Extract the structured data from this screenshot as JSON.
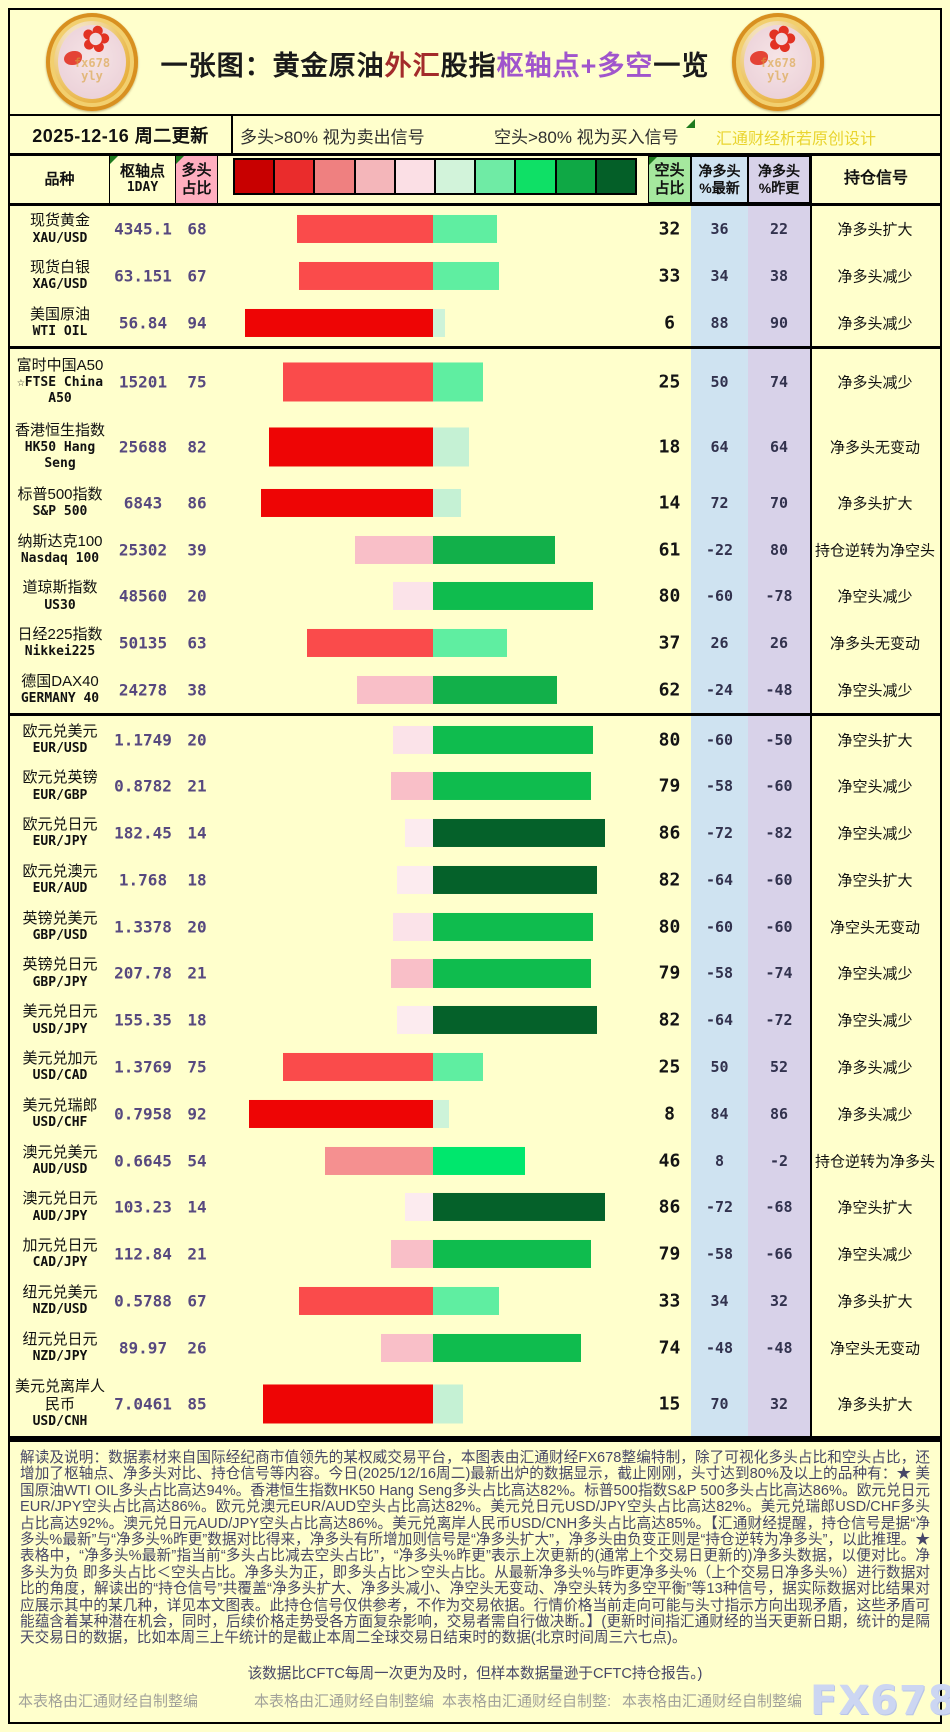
{
  "page": {
    "background": "#ffffcc"
  },
  "logo": {
    "flower_color": "#e23223",
    "watermark_lines": [
      "fx678",
      "yly"
    ]
  },
  "title": {
    "segments": [
      {
        "text": "一张图：黄金原油",
        "color": "#1a1a1a"
      },
      {
        "text": "外汇",
        "color": "#a32b2b"
      },
      {
        "text": "股指",
        "color": "#1a1a1a"
      },
      {
        "text": "枢轴点+多空",
        "color": "#a055cc"
      },
      {
        "text": "一览",
        "color": "#1a1a1a"
      }
    ]
  },
  "legend": {
    "date": "2025-12-16 周二更新",
    "long_rule": "多头>80% 视为卖出信号",
    "short_rule": "空头>80% 视为买入信号",
    "credit": "汇通财经析若原创设计",
    "credit_color": "#e9d42f"
  },
  "header": {
    "product": "品种",
    "pivot": "枢轴点",
    "pivot_sub": "1DAY",
    "long_l1": "多头",
    "long_l2": "占比",
    "short_l1": "空头",
    "short_l2": "占比",
    "net_new_l1": "净多头",
    "net_new_l2": "%最新",
    "net_prev_l1": "净多头",
    "net_prev_l2": "%昨更",
    "signal": "持仓信号",
    "scale_colors": [
      "#c80000",
      "#ea2c2c",
      "#ef8080",
      "#f4b6ba",
      "#fbdfe5",
      "#d2f3da",
      "#6feba5",
      "#0fe066",
      "#0fa845",
      "#045f28"
    ],
    "colors": {
      "long_header_bg": "#ffaebf",
      "short_header_bg": "#a5e89e",
      "net_new_bg": "#cfe3f1",
      "net_prev_bg": "#d8d2e9"
    }
  },
  "table": {
    "rows": [
      {
        "cn": [
          "现货黄金"
        ],
        "en": [
          "XAU/USD"
        ],
        "pivot": "4345.1",
        "long": 68,
        "short": 32,
        "net_new": "36",
        "net_prev": "22",
        "signal": "净多头扩大",
        "long_color": "#fa4b4b",
        "short_color": "#5feea1",
        "lines": 2,
        "group_end": false
      },
      {
        "cn": [
          "现货白银"
        ],
        "en": [
          "XAG/USD"
        ],
        "pivot": "63.151",
        "long": 67,
        "short": 33,
        "net_new": "34",
        "net_prev": "38",
        "signal": "净多头减少",
        "long_color": "#fa4b4b",
        "short_color": "#5feea1",
        "lines": 2,
        "group_end": false
      },
      {
        "cn": [
          "美国原油"
        ],
        "en": [
          "WTI OIL"
        ],
        "pivot": "56.84",
        "long": 94,
        "short": 6,
        "net_new": "88",
        "net_prev": "90",
        "signal": "净多头减少",
        "long_color": "#ee0505",
        "short_color": "#cdf3d9",
        "lines": 2,
        "group_end": true
      },
      {
        "cn": [
          "富时中国A50"
        ],
        "en": [
          "☆FTSE China",
          "A50"
        ],
        "pivot": "15201",
        "long": 75,
        "short": 25,
        "net_new": "50",
        "net_prev": "74",
        "signal": "净多头减少",
        "long_color": "#fa4b4b",
        "short_color": "#5feea1",
        "lines": 3,
        "group_end": false
      },
      {
        "cn": [
          "香港恒生指数"
        ],
        "en": [
          "HK50 Hang",
          "Seng"
        ],
        "pivot": "25688",
        "long": 82,
        "short": 18,
        "net_new": "64",
        "net_prev": "64",
        "signal": "净多头无变动",
        "long_color": "#ee0505",
        "short_color": "#c5f1d4",
        "lines": 3,
        "group_end": false
      },
      {
        "cn": [
          "标普500指数"
        ],
        "en": [
          "S&P 500"
        ],
        "pivot": "6843",
        "long": 86,
        "short": 14,
        "net_new": "72",
        "net_prev": "70",
        "signal": "净多头扩大",
        "long_color": "#ee0505",
        "short_color": "#c5f1d4",
        "lines": 2,
        "group_end": false
      },
      {
        "cn": [
          "纳斯达克100"
        ],
        "en": [
          "Nasdaq 100"
        ],
        "pivot": "25302",
        "long": 39,
        "short": 61,
        "net_new": "-22",
        "net_prev": "80",
        "signal": "持仓逆转为净空头",
        "long_color": "#f9bfc8",
        "short_color": "#12b04a",
        "lines": 2,
        "group_end": false
      },
      {
        "cn": [
          "道琼斯指数"
        ],
        "en": [
          "US30"
        ],
        "pivot": "48560",
        "long": 20,
        "short": 80,
        "net_new": "-60",
        "net_prev": "-78",
        "signal": "净空头减少",
        "long_color": "#fbe3e9",
        "short_color": "#0fbc4e",
        "lines": 2,
        "group_end": false
      },
      {
        "cn": [
          "日经225指数"
        ],
        "en": [
          "Nikkei225"
        ],
        "pivot": "50135",
        "long": 63,
        "short": 37,
        "net_new": "26",
        "net_prev": "26",
        "signal": "净多头无变动",
        "long_color": "#fa4b4b",
        "short_color": "#5feea1",
        "lines": 2,
        "group_end": false
      },
      {
        "cn": [
          "德国DAX40"
        ],
        "en": [
          "GERMANY 40"
        ],
        "pivot": "24278",
        "long": 38,
        "short": 62,
        "net_new": "-24",
        "net_prev": "-48",
        "signal": "净空头减少",
        "long_color": "#f9bfc8",
        "short_color": "#12b04a",
        "lines": 2,
        "group_end": true
      },
      {
        "cn": [
          "欧元兑美元"
        ],
        "en": [
          "EUR/USD"
        ],
        "pivot": "1.1749",
        "long": 20,
        "short": 80,
        "net_new": "-60",
        "net_prev": "-50",
        "signal": "净空头扩大",
        "long_color": "#fbe3e9",
        "short_color": "#0fbc4e",
        "lines": 2,
        "group_end": false
      },
      {
        "cn": [
          "欧元兑英镑"
        ],
        "en": [
          "EUR/GBP"
        ],
        "pivot": "0.8782",
        "long": 21,
        "short": 79,
        "net_new": "-58",
        "net_prev": "-60",
        "signal": "净空头减少",
        "long_color": "#f9bfc8",
        "short_color": "#0fbc4e",
        "lines": 2,
        "group_end": false
      },
      {
        "cn": [
          "欧元兑日元"
        ],
        "en": [
          "EUR/JPY"
        ],
        "pivot": "182.45",
        "long": 14,
        "short": 86,
        "net_new": "-72",
        "net_prev": "-82",
        "signal": "净空头减少",
        "long_color": "#fcebef",
        "short_color": "#05612a",
        "lines": 2,
        "group_end": false
      },
      {
        "cn": [
          "欧元兑澳元"
        ],
        "en": [
          "EUR/AUD"
        ],
        "pivot": "1.768",
        "long": 18,
        "short": 82,
        "net_new": "-64",
        "net_prev": "-60",
        "signal": "净空头扩大",
        "long_color": "#fcebef",
        "short_color": "#05612a",
        "lines": 2,
        "group_end": false
      },
      {
        "cn": [
          "英镑兑美元"
        ],
        "en": [
          "GBP/USD"
        ],
        "pivot": "1.3378",
        "long": 20,
        "short": 80,
        "net_new": "-60",
        "net_prev": "-60",
        "signal": "净空头无变动",
        "long_color": "#fbe3e9",
        "short_color": "#0fbc4e",
        "lines": 2,
        "group_end": false
      },
      {
        "cn": [
          "英镑兑日元"
        ],
        "en": [
          "GBP/JPY"
        ],
        "pivot": "207.78",
        "long": 21,
        "short": 79,
        "net_new": "-58",
        "net_prev": "-74",
        "signal": "净空头减少",
        "long_color": "#f9bfc8",
        "short_color": "#0fbc4e",
        "lines": 2,
        "group_end": false
      },
      {
        "cn": [
          "美元兑日元"
        ],
        "en": [
          "USD/JPY"
        ],
        "pivot": "155.35",
        "long": 18,
        "short": 82,
        "net_new": "-64",
        "net_prev": "-72",
        "signal": "净空头减少",
        "long_color": "#fcebef",
        "short_color": "#05612a",
        "lines": 2,
        "group_end": false
      },
      {
        "cn": [
          "美元兑加元"
        ],
        "en": [
          "USD/CAD"
        ],
        "pivot": "1.3769",
        "long": 75,
        "short": 25,
        "net_new": "50",
        "net_prev": "52",
        "signal": "净多头减少",
        "long_color": "#fa4b4b",
        "short_color": "#5feea1",
        "lines": 2,
        "group_end": false
      },
      {
        "cn": [
          "美元兑瑞郎"
        ],
        "en": [
          "USD/CHF"
        ],
        "pivot": "0.7958",
        "long": 92,
        "short": 8,
        "net_new": "84",
        "net_prev": "86",
        "signal": "净多头减少",
        "long_color": "#ee0505",
        "short_color": "#cdf3d9",
        "lines": 2,
        "group_end": false
      },
      {
        "cn": [
          "澳元兑美元"
        ],
        "en": [
          "AUD/USD"
        ],
        "pivot": "0.6645",
        "long": 54,
        "short": 46,
        "net_new": "8",
        "net_prev": "-2",
        "signal": "持仓逆转为净多头",
        "long_color": "#f59090",
        "short_color": "#00e76d",
        "lines": 2,
        "group_end": false
      },
      {
        "cn": [
          "澳元兑日元"
        ],
        "en": [
          "AUD/JPY"
        ],
        "pivot": "103.23",
        "long": 14,
        "short": 86,
        "net_new": "-72",
        "net_prev": "-68",
        "signal": "净空头扩大",
        "long_color": "#fcebef",
        "short_color": "#05612a",
        "lines": 2,
        "group_end": false
      },
      {
        "cn": [
          "加元兑日元"
        ],
        "en": [
          "CAD/JPY"
        ],
        "pivot": "112.84",
        "long": 21,
        "short": 79,
        "net_new": "-58",
        "net_prev": "-66",
        "signal": "净空头减少",
        "long_color": "#f9bfc8",
        "short_color": "#0fbc4e",
        "lines": 2,
        "group_end": false
      },
      {
        "cn": [
          "纽元兑美元"
        ],
        "en": [
          "NZD/USD"
        ],
        "pivot": "0.5788",
        "long": 67,
        "short": 33,
        "net_new": "34",
        "net_prev": "32",
        "signal": "净多头扩大",
        "long_color": "#fa4b4b",
        "short_color": "#5feea1",
        "lines": 2,
        "group_end": false
      },
      {
        "cn": [
          "纽元兑日元"
        ],
        "en": [
          "NZD/JPY"
        ],
        "pivot": "89.97",
        "long": 26,
        "short": 74,
        "net_new": "-48",
        "net_prev": "-48",
        "signal": "净空头无变动",
        "long_color": "#f9bfc8",
        "short_color": "#0fbc4e",
        "lines": 2,
        "group_end": false
      },
      {
        "cn": [
          "美元兑离岸人",
          "民币"
        ],
        "en": [
          "USD/CNH"
        ],
        "pivot": "7.0461",
        "long": 85,
        "short": 15,
        "net_new": "70",
        "net_prev": "32",
        "signal": "净多头扩大",
        "long_color": "#ee0505",
        "short_color": "#c5f1d4",
        "lines": 3,
        "group_end": true
      }
    ]
  },
  "chart_data": {
    "type": "bar",
    "subtype": "diverging-stacked-horizontal",
    "title": "一张图：黄金原油外汇股指枢轴点+多空一览",
    "legend_position": "top",
    "axis_note": "中轴为多空分界，左红=多头占比，右绿=空头占比，每侧0-100%",
    "categories": [
      "XAU/USD",
      "XAG/USD",
      "WTI OIL",
      "FTSE China A50",
      "HK50 Hang Seng",
      "S&P 500",
      "Nasdaq 100",
      "US30",
      "Nikkei225",
      "GERMANY 40",
      "EUR/USD",
      "EUR/GBP",
      "EUR/JPY",
      "EUR/AUD",
      "GBP/USD",
      "GBP/JPY",
      "USD/JPY",
      "USD/CAD",
      "USD/CHF",
      "AUD/USD",
      "AUD/JPY",
      "CAD/JPY",
      "NZD/USD",
      "NZD/JPY",
      "USD/CNH"
    ],
    "series": [
      {
        "name": "枢轴点1DAY",
        "values": [
          4345.1,
          63.151,
          56.84,
          15201,
          25688,
          6843,
          25302,
          48560,
          50135,
          24278,
          1.1749,
          0.8782,
          182.45,
          1.768,
          1.3378,
          207.78,
          155.35,
          1.3769,
          0.7958,
          0.6645,
          103.23,
          112.84,
          0.5788,
          89.97,
          7.0461
        ]
      },
      {
        "name": "多头占比",
        "values": [
          68,
          67,
          94,
          75,
          82,
          86,
          39,
          20,
          63,
          38,
          20,
          21,
          14,
          18,
          20,
          21,
          18,
          75,
          92,
          54,
          14,
          21,
          67,
          26,
          85
        ]
      },
      {
        "name": "空头占比",
        "values": [
          32,
          33,
          6,
          25,
          18,
          14,
          61,
          80,
          37,
          62,
          80,
          79,
          86,
          82,
          80,
          79,
          82,
          25,
          8,
          46,
          86,
          79,
          33,
          74,
          15
        ]
      },
      {
        "name": "净多头%最新",
        "values": [
          36,
          34,
          88,
          50,
          64,
          72,
          -22,
          -60,
          26,
          -24,
          -60,
          -58,
          -72,
          -64,
          -60,
          -58,
          -64,
          50,
          84,
          8,
          -72,
          -58,
          34,
          -48,
          70
        ]
      },
      {
        "name": "净多头%昨更",
        "values": [
          22,
          38,
          90,
          74,
          64,
          70,
          80,
          -78,
          26,
          -48,
          -50,
          -60,
          -82,
          -60,
          -60,
          -74,
          -72,
          52,
          86,
          -2,
          -68,
          -66,
          32,
          -48,
          32
        ]
      }
    ],
    "signals": [
      "净多头扩大",
      "净多头减少",
      "净多头减少",
      "净多头减少",
      "净多头无变动",
      "净多头扩大",
      "持仓逆转为净空头",
      "净空头减少",
      "净多头无变动",
      "净空头减少",
      "净空头扩大",
      "净空头减少",
      "净空头减少",
      "净空头扩大",
      "净空头无变动",
      "净空头减少",
      "净空头减少",
      "净多头减少",
      "净多头减少",
      "持仓逆转为净多头",
      "净空头扩大",
      "净空头减少",
      "净多头扩大",
      "净空头无变动",
      "净多头扩大"
    ]
  },
  "footer": {
    "paragraph": "解读及说明：数据素材来自国际经纪商市值领先的某权威交易平台，本图表由汇通财经FX678整编特制，除了可视化多头占比和空头占比，还增加了枢轴点、净多头对比、持仓信号等内容。今日(2025/12/16周二)最新出炉的数据显示，截止刚刚，头寸达到80%及以上的品种有：★ 美国原油WTI OIL多头占比高达94%。香港恒生指数HK50 Hang Seng多头占比高达82%。标普500指数S&P 500多头占比高达86%。欧元兑日元EUR/JPY空头占比高达86%。欧元兑澳元EUR/AUD空头占比高达82%。美元兑日元USD/JPY空头占比高达82%。美元兑瑞郎USD/CHF多头占比高达92%。澳元兑日元AUD/JPY空头占比高达86%。美元兑离岸人民币USD/CNH多头占比高达85%。【汇通财经提醒，持仓信号是据“净多头%最新”与“净多头%昨更”数据对比得来，净多头有所增加则信号是“净多头扩大”，净多头由负变正则是“持仓逆转为净多头”，以此推理。★表格中，“净多头%最新”指当前“多头占比减去空头占比”，“净多头%昨更”表示上次更新的(通常上个交易日更新的)净多头数据，以便对比。净多头为负 即多头占比＜空头占比。净多头为正，即多头占比＞空头占比。从最新净多头%与昨更净多头%（上个交易日净多头%）进行数据对比的角度，解读出的“持仓信号”共覆盖“净多头扩大、净多头减小、净空头无变动、净空头转为多空平衡”等13种信号，据实际数据对比结果对应展示其中的某几种，详见本文图表。此持仓信号仅供参考，不作为交易依据。行情价格当前走向可能与头寸指示方向出现矛盾，这些矛盾可能蕴含着某种潜在机会，同时，后续价格走势受各方面复杂影响，交易者需自行做决断。】(更新时间指汇通财经的当天更新日期，统计的是隔天交易日的数据，比如本周三上午统计的是截止本周二全球交易日结束时的数据(北京时间周三六七点)。",
    "last_line": "该数据比CFTC每周一次更为及时，但样本数据量逊于CFTC持仓报告。)",
    "strip": [
      "本表格由汇通财经自制整编",
      "本表格由汇通财经自制整编",
      "本表格由汇通财经自制整:",
      "本表格由汇通财经自制整编"
    ],
    "watermark": "FX678"
  }
}
